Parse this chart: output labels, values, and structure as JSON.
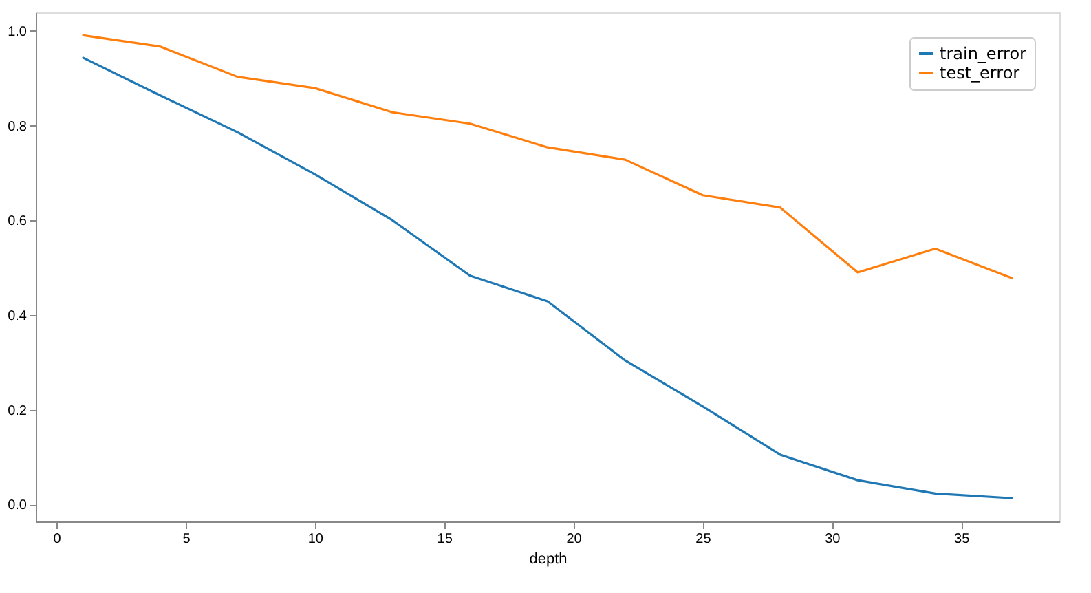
{
  "chart_data": {
    "type": "line",
    "xlabel": "depth",
    "x": [
      1,
      4,
      7,
      10,
      13,
      16,
      19,
      22,
      25,
      28,
      31,
      34,
      37
    ],
    "series": [
      {
        "name": "train_error",
        "color": "#1f77b4",
        "values": [
          0.944,
          0.864,
          0.786,
          0.697,
          0.6,
          0.483,
          0.429,
          0.304,
          0.207,
          0.105,
          0.051,
          0.023,
          0.013
        ]
      },
      {
        "name": "test_error",
        "color": "#ff7f0e",
        "values": [
          0.991,
          0.967,
          0.903,
          0.879,
          0.828,
          0.804,
          0.754,
          0.728,
          0.653,
          0.627,
          0.49,
          0.54,
          0.477
        ]
      }
    ],
    "xlim": [
      -0.8,
      38.8
    ],
    "xticks": [
      0,
      5,
      10,
      15,
      20,
      25,
      30,
      35
    ],
    "ylim": [
      -0.036,
      1.039
    ],
    "yticks": [
      {
        "value": 0,
        "label": "0.0"
      },
      0.2,
      0.4,
      0.6,
      0.8,
      {
        "value": 1,
        "label": "1.0"
      }
    ],
    "grid": false,
    "legend": "top right",
    "marker": "none",
    "line_style": "solid"
  }
}
